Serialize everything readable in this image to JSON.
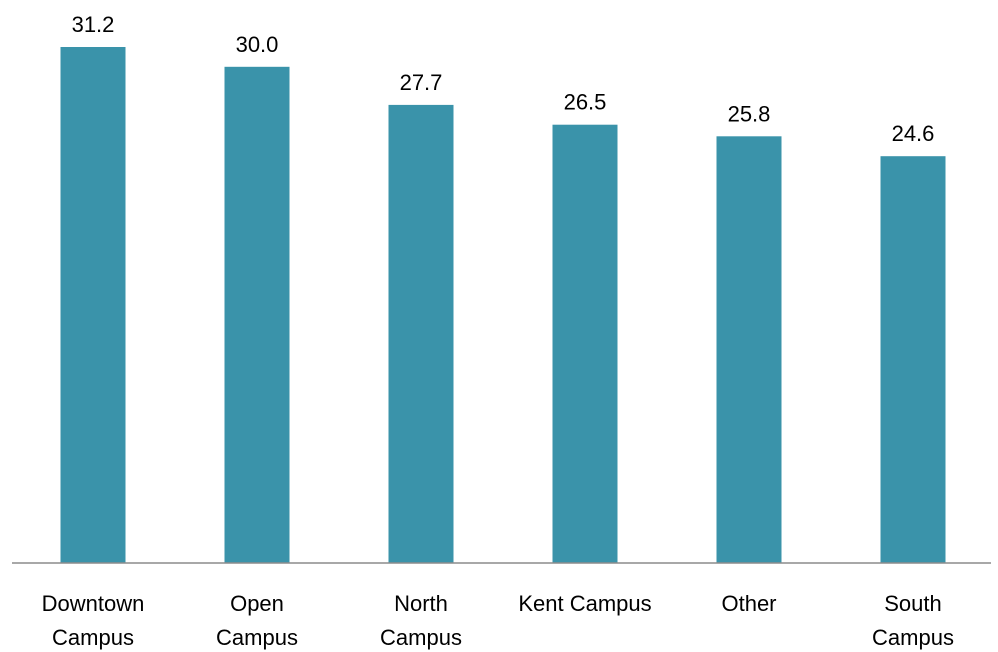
{
  "chart_data": {
    "type": "bar",
    "categories": [
      [
        "Downtown",
        "Campus"
      ],
      [
        "Open",
        "Campus"
      ],
      [
        "North",
        "Campus"
      ],
      [
        "Kent Campus"
      ],
      [
        "Other"
      ],
      [
        "South",
        "Campus"
      ]
    ],
    "values": [
      31.2,
      30.0,
      27.7,
      26.5,
      25.8,
      24.6
    ],
    "value_labels": [
      "31.2",
      "30.0",
      "27.7",
      "26.5",
      "25.8",
      "24.6"
    ],
    "title": "",
    "xlabel": "",
    "ylabel": "",
    "ylim": [
      0,
      31.2
    ],
    "grid": false,
    "legend": "none",
    "colors": {
      "bar": "#3a93aa",
      "axis": "#8c8c8c",
      "text": "#000000"
    }
  }
}
